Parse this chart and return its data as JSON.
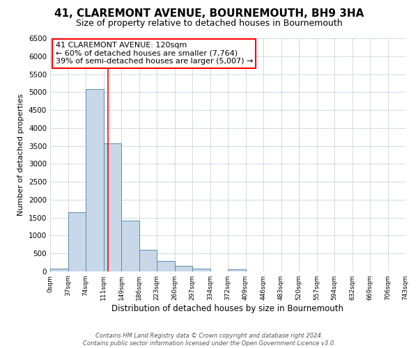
{
  "title": "41, CLAREMONT AVENUE, BOURNEMOUTH, BH9 3HA",
  "subtitle": "Size of property relative to detached houses in Bournemouth",
  "xlabel": "Distribution of detached houses by size in Bournemouth",
  "ylabel": "Number of detached properties",
  "footer_line1": "Contains HM Land Registry data © Crown copyright and database right 2024.",
  "footer_line2": "Contains public sector information licensed under the Open Government Licence v3.0.",
  "bin_labels": [
    "0sqm",
    "37sqm",
    "74sqm",
    "111sqm",
    "149sqm",
    "186sqm",
    "223sqm",
    "260sqm",
    "297sqm",
    "334sqm",
    "372sqm",
    "409sqm",
    "446sqm",
    "483sqm",
    "520sqm",
    "557sqm",
    "594sqm",
    "632sqm",
    "669sqm",
    "706sqm",
    "743sqm"
  ],
  "bar_values": [
    75,
    1650,
    5075,
    3575,
    1425,
    610,
    300,
    150,
    75,
    0,
    50,
    0,
    0,
    0,
    0,
    0,
    0,
    0,
    0,
    0
  ],
  "bin_edges": [
    0,
    37,
    74,
    111,
    148,
    185,
    222,
    259,
    296,
    333,
    370,
    407,
    444,
    481,
    518,
    555,
    592,
    629,
    666,
    703,
    740
  ],
  "bar_color": "#c8d8e8",
  "bar_edge_color": "#5a8ab0",
  "property_line_x": 120,
  "property_line_color": "red",
  "annotation_text_line1": "41 CLAREMONT AVENUE: 120sqm",
  "annotation_text_line2": "← 60% of detached houses are smaller (7,764)",
  "annotation_text_line3": "39% of semi-detached houses are larger (5,007) →",
  "annotation_box_color": "red",
  "ylim": [
    0,
    6500
  ],
  "yticks": [
    0,
    500,
    1000,
    1500,
    2000,
    2500,
    3000,
    3500,
    4000,
    4500,
    5000,
    5500,
    6000,
    6500
  ],
  "background_color": "#ffffff",
  "grid_color": "#c0ccd8",
  "title_fontsize": 11,
  "subtitle_fontsize": 9,
  "xlabel_fontsize": 8.5,
  "ylabel_fontsize": 8,
  "xtick_fontsize": 6.5,
  "ytick_fontsize": 7.5,
  "annotation_fontsize": 8,
  "footer_fontsize": 6
}
